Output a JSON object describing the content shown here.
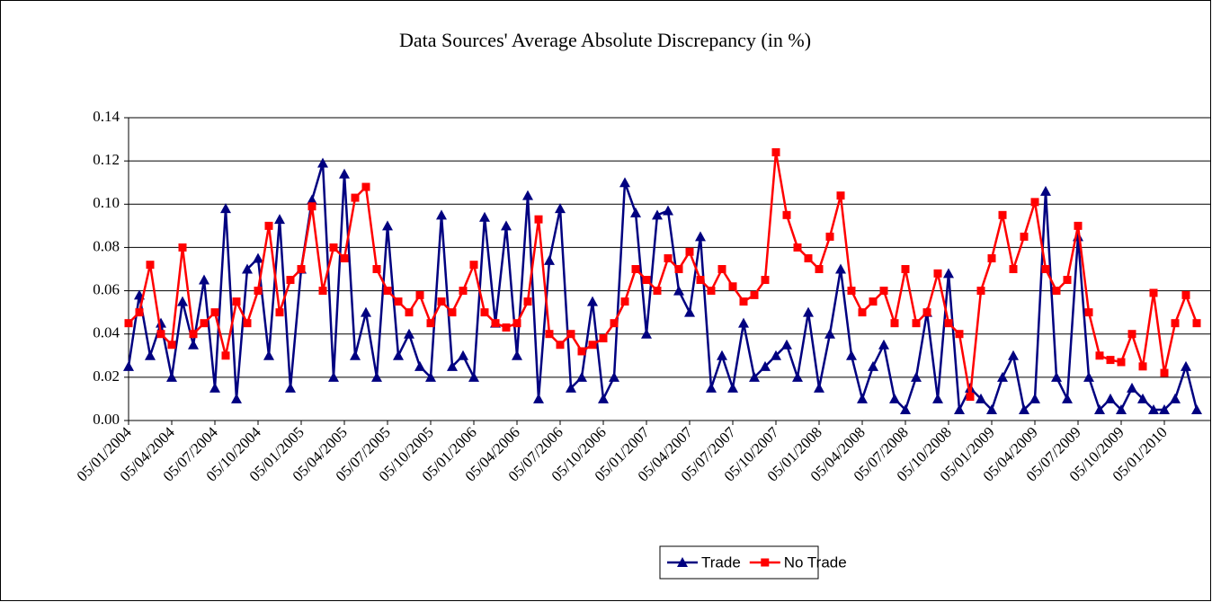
{
  "chart_data": {
    "type": "line",
    "title": "Data Sources' Average Absolute Discrepancy (in %)",
    "categories": [
      "05/01/2004",
      null,
      null,
      null,
      "05/04/2004",
      null,
      null,
      null,
      "05/07/2004",
      null,
      null,
      null,
      "05/10/2004",
      null,
      null,
      null,
      "05/01/2005",
      null,
      null,
      null,
      "05/04/2005",
      null,
      null,
      null,
      "05/07/2005",
      null,
      null,
      null,
      "05/10/2005",
      null,
      null,
      null,
      "05/01/2006",
      null,
      null,
      null,
      "05/04/2006",
      null,
      null,
      null,
      "05/07/2006",
      null,
      null,
      null,
      "05/10/2006",
      null,
      null,
      null,
      "05/01/2007",
      null,
      null,
      null,
      "05/04/2007",
      null,
      null,
      null,
      "05/07/2007",
      null,
      null,
      null,
      "05/10/2007",
      null,
      null,
      null,
      "05/01/2008",
      null,
      null,
      null,
      "05/04/2008",
      null,
      null,
      null,
      "05/07/2008",
      null,
      null,
      null,
      "05/10/2008",
      null,
      null,
      null,
      "05/01/2009",
      null,
      null,
      null,
      "05/04/2009",
      null,
      null,
      null,
      "05/07/2009",
      null,
      null,
      null,
      "05/10/2009",
      null,
      null,
      null,
      "05/01/2010",
      null,
      null,
      null
    ],
    "series": [
      {
        "name": "Trade",
        "color": "#000080",
        "marker": "triangle",
        "values": [
          0.025,
          0.058,
          0.03,
          0.045,
          0.02,
          0.055,
          0.035,
          0.065,
          0.015,
          0.098,
          0.01,
          0.07,
          0.075,
          0.03,
          0.093,
          0.015,
          0.07,
          0.102,
          0.119,
          0.02,
          0.114,
          0.03,
          0.05,
          0.02,
          0.09,
          0.03,
          0.04,
          0.025,
          0.02,
          0.095,
          0.025,
          0.03,
          0.02,
          0.094,
          0.045,
          0.09,
          0.03,
          0.104,
          0.01,
          0.074,
          0.098,
          0.015,
          0.02,
          0.055,
          0.01,
          0.02,
          0.11,
          0.096,
          0.04,
          0.095,
          0.097,
          0.06,
          0.05,
          0.085,
          0.015,
          0.03,
          0.015,
          0.045,
          0.02,
          0.025,
          0.03,
          0.035,
          0.02,
          0.05,
          0.015,
          0.04,
          0.07,
          0.03,
          0.01,
          0.025,
          0.035,
          0.01,
          0.005,
          0.02,
          0.05,
          0.01,
          0.068,
          0.005,
          0.015,
          0.01,
          0.005,
          0.02,
          0.03,
          0.005,
          0.01,
          0.106,
          0.02,
          0.01,
          0.085,
          0.02,
          0.005,
          0.01,
          0.005,
          0.015,
          0.01,
          0.005,
          0.005,
          0.01,
          0.025,
          0.005
        ]
      },
      {
        "name": "No Trade",
        "color": "#ff0000",
        "marker": "square",
        "values": [
          0.045,
          0.05,
          0.072,
          0.04,
          0.035,
          0.08,
          0.04,
          0.045,
          0.05,
          0.03,
          0.055,
          0.045,
          0.06,
          0.09,
          0.05,
          0.065,
          0.07,
          0.099,
          0.06,
          0.08,
          0.075,
          0.103,
          0.108,
          0.07,
          0.06,
          0.055,
          0.05,
          0.058,
          0.045,
          0.055,
          0.05,
          0.06,
          0.072,
          0.05,
          0.045,
          0.043,
          0.045,
          0.055,
          0.093,
          0.04,
          0.035,
          0.04,
          0.032,
          0.035,
          0.038,
          0.045,
          0.055,
          0.07,
          0.065,
          0.06,
          0.075,
          0.07,
          0.078,
          0.065,
          0.06,
          0.07,
          0.062,
          0.055,
          0.058,
          0.065,
          0.124,
          0.095,
          0.08,
          0.075,
          0.07,
          0.085,
          0.104,
          0.06,
          0.05,
          0.055,
          0.06,
          0.045,
          0.07,
          0.045,
          0.05,
          0.068,
          0.045,
          0.04,
          0.011,
          0.06,
          0.075,
          0.095,
          0.07,
          0.085,
          0.101,
          0.07,
          0.06,
          0.065,
          0.09,
          0.05,
          0.03,
          0.028,
          0.027,
          0.04,
          0.025,
          0.059,
          0.022,
          0.045,
          0.058,
          0.045
        ]
      }
    ],
    "ylim": [
      0,
      0.14
    ],
    "yticks": [
      {
        "value": 0,
        "label": "0.00"
      },
      0.02,
      0.04,
      0.06,
      0.08,
      {
        "value": 0.1,
        "label": "0.10"
      },
      0.12,
      0.14
    ],
    "grid": true,
    "legend": "bottom"
  }
}
